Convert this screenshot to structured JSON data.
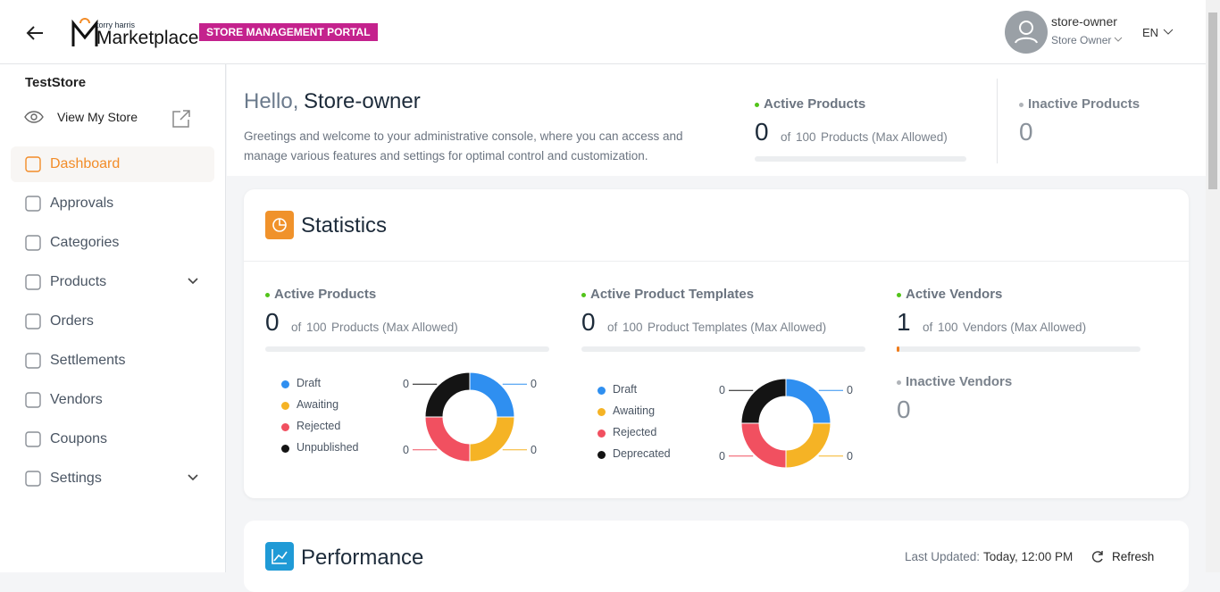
{
  "header": {
    "brand_small": "torry harris",
    "brand": "Marketplace",
    "portal_badge": "STORE MANAGEMENT PORTAL",
    "user_name": "store-owner",
    "user_role": "Store Owner",
    "language": "EN"
  },
  "sidebar": {
    "store_name": "TestStore",
    "view_store": "View My Store",
    "menu": [
      {
        "label": "Dashboard",
        "active": true
      },
      {
        "label": "Approvals"
      },
      {
        "label": "Categories"
      },
      {
        "label": "Products",
        "expandable": true
      },
      {
        "label": "Orders"
      },
      {
        "label": "Settlements"
      },
      {
        "label": "Vendors"
      },
      {
        "label": "Coupons"
      },
      {
        "label": "Settings",
        "expandable": true
      }
    ]
  },
  "welcome": {
    "greeting": "Hello,",
    "name": "Store-owner",
    "message": "Greetings and welcome to your administrative console, where you can access and manage various features and settings for optimal control and customization.",
    "active_products": {
      "label": "Active Products",
      "count": 0,
      "of_label": "of",
      "max": 100,
      "unit_label": "Products (Max Allowed)"
    },
    "inactive_products": {
      "label": "Inactive Products",
      "count": 0
    }
  },
  "statistics": {
    "title": "Statistics",
    "progress_color": "#f07c1b",
    "panels": [
      {
        "label": "Active Products",
        "count": 0,
        "of_label": "of",
        "max": 100,
        "unit_label": "Products (Max Allowed)",
        "breakdown": [
          {
            "label": "Draft",
            "color": "#2f8ff0",
            "value": 0
          },
          {
            "label": "Awaiting",
            "color": "#f5b325",
            "value": 0
          },
          {
            "label": "Rejected",
            "color": "#f15060",
            "value": 0
          },
          {
            "label": "Unpublished",
            "color": "#141414",
            "value": 0
          }
        ]
      },
      {
        "label": "Active Product Templates",
        "count": 0,
        "of_label": "of",
        "max": 100,
        "unit_label": "Product Templates (Max Allowed)",
        "breakdown": [
          {
            "label": "Draft",
            "color": "#2f8ff0",
            "value": 0
          },
          {
            "label": "Awaiting",
            "color": "#f5b325",
            "value": 0
          },
          {
            "label": "Rejected",
            "color": "#f15060",
            "value": 0
          },
          {
            "label": "Deprecated",
            "color": "#141414",
            "value": 0
          }
        ]
      },
      {
        "label": "Active Vendors",
        "count": 1,
        "of_label": "of",
        "max": 100,
        "unit_label": "Vendors (Max Allowed)",
        "inactive": {
          "label": "Inactive Vendors",
          "count": 0
        }
      }
    ]
  },
  "performance": {
    "title": "Performance",
    "last_updated_label": "Last Updated:",
    "last_updated": "Today, 12:00 PM",
    "refresh": "Refresh"
  }
}
